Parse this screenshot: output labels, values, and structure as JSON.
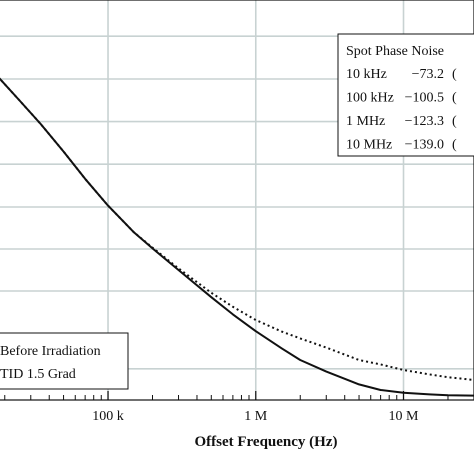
{
  "chart_data": {
    "type": "line",
    "xlabel": "Offset Frequency (Hz)",
    "xscale": "log",
    "xlim": [
      18000,
      30000000
    ],
    "ylim": [
      0,
      1
    ],
    "grid": true,
    "x_ticks": [
      {
        "value": 100000,
        "label": "100 k"
      },
      {
        "value": 1000000,
        "label": "1 M"
      },
      {
        "value": 10000000,
        "label": "10 M"
      }
    ],
    "x_minor_ticks": [
      20000,
      30000,
      40000,
      50000,
      60000,
      70000,
      80000,
      90000,
      200000,
      300000,
      400000,
      500000,
      600000,
      700000,
      800000,
      900000,
      2000000,
      3000000,
      4000000,
      5000000,
      6000000,
      7000000,
      8000000,
      9000000,
      20000000
    ],
    "y_gridlines": [
      0.078,
      0.2725,
      0.3775,
      0.4825,
      0.5895,
      0.696,
      0.8025,
      0.9095
    ],
    "legend": {
      "position": "bottom-left",
      "entries": [
        "Before Irradiation",
        "TID 1.5 Grad"
      ]
    },
    "series": [
      {
        "name": "Before Irradiation",
        "style": "solid",
        "color": "#111111",
        "x": [
          18000,
          25000,
          35000,
          50000,
          70000,
          100000,
          150000,
          200000,
          300000,
          500000,
          700000,
          1000000,
          1500000,
          2000000,
          3000000,
          5000000,
          7000000,
          10000000,
          15000000,
          20000000,
          30000000
        ],
        "y": [
          0.808,
          0.75,
          0.69,
          0.621,
          0.553,
          0.486,
          0.419,
          0.379,
          0.325,
          0.257,
          0.214,
          0.172,
          0.129,
          0.1,
          0.071,
          0.039,
          0.025,
          0.018,
          0.014,
          0.012,
          0.011
        ]
      },
      {
        "name": "TID 1.5 Grad",
        "style": "dotted",
        "color": "#111111",
        "x": [
          18000,
          25000,
          35000,
          50000,
          70000,
          100000,
          150000,
          200000,
          300000,
          500000,
          700000,
          1000000,
          1500000,
          2000000,
          3000000,
          5000000,
          7000000,
          10000000,
          15000000,
          20000000,
          30000000
        ],
        "y": [
          0.808,
          0.75,
          0.69,
          0.621,
          0.553,
          0.486,
          0.419,
          0.381,
          0.329,
          0.268,
          0.233,
          0.2,
          0.171,
          0.154,
          0.131,
          0.1,
          0.089,
          0.075,
          0.064,
          0.057,
          0.05
        ]
      }
    ],
    "table": {
      "title": "Spot Phase Noise",
      "rows": [
        {
          "freq": "10 kHz",
          "value": "−73.2",
          "rest": "("
        },
        {
          "freq": "100 kHz",
          "value": "−100.5",
          "rest": "("
        },
        {
          "freq": "1 MHz",
          "value": "−123.3",
          "rest": "("
        },
        {
          "freq": "10 MHz",
          "value": "−139.0",
          "rest": "("
        }
      ]
    }
  }
}
